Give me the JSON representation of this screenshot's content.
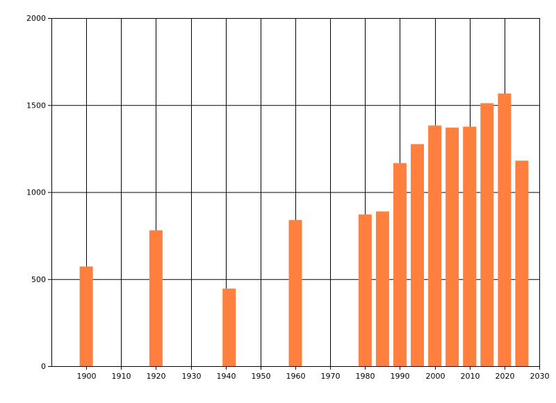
{
  "colors": {
    "bar": "#ff7f3f",
    "grid": "#000000",
    "axis": "#000000",
    "background": "#ffffff"
  },
  "chart_data": {
    "type": "bar",
    "title": "",
    "xlabel": "",
    "ylabel": "",
    "xlim": [
      1890,
      2030
    ],
    "ylim": [
      0,
      2000
    ],
    "x_ticks": [
      1900,
      1910,
      1920,
      1930,
      1940,
      1950,
      1960,
      1970,
      1980,
      1990,
      2000,
      2010,
      2020,
      2030
    ],
    "y_ticks": [
      0,
      500,
      1000,
      1500,
      2000
    ],
    "grid": true,
    "legend": "none",
    "points": [
      {
        "x": 1900,
        "y": 573
      },
      {
        "x": 1920,
        "y": 781
      },
      {
        "x": 1941,
        "y": 446
      },
      {
        "x": 1960,
        "y": 840
      },
      {
        "x": 1980,
        "y": 872
      },
      {
        "x": 1985,
        "y": 889
      },
      {
        "x": 1990,
        "y": 1167
      },
      {
        "x": 1995,
        "y": 1276
      },
      {
        "x": 2000,
        "y": 1383
      },
      {
        "x": 2005,
        "y": 1371
      },
      {
        "x": 2010,
        "y": 1376
      },
      {
        "x": 2015,
        "y": 1511
      },
      {
        "x": 2020,
        "y": 1567
      },
      {
        "x": 2025,
        "y": 1181
      }
    ]
  }
}
